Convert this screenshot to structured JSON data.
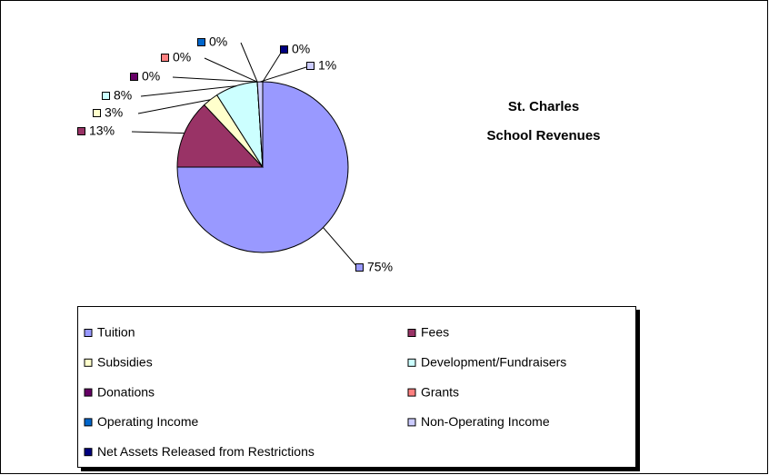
{
  "chart_data": {
    "type": "pie",
    "title": [
      "St. Charles",
      "School Revenues"
    ],
    "categories": [
      "Tuition",
      "Fees",
      "Subsidies",
      "Development/Fundraisers",
      "Donations",
      "Grants",
      "Operating Income",
      "Non-Operating Income",
      "Net Assets Released from Restrictions"
    ],
    "values": [
      75,
      13,
      3,
      8,
      0,
      0,
      0,
      1,
      0
    ],
    "value_labels": [
      "75%",
      "13%",
      "3%",
      "8%",
      "0%",
      "0%",
      "0%",
      "1%",
      "0%"
    ],
    "colors": [
      "#9999FF",
      "#993366",
      "#FFFFCC",
      "#CCFFFF",
      "#660066",
      "#FF8080",
      "#0066CC",
      "#CCCCFF",
      "#000080"
    ],
    "legend": "bottom"
  }
}
